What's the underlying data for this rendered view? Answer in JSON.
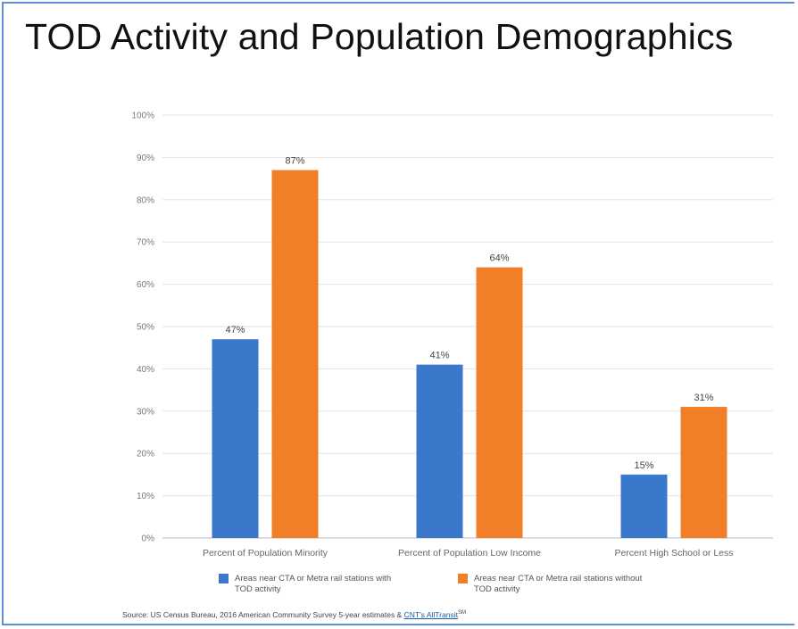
{
  "title": "TOD Activity and Population Demographics",
  "chart_data": {
    "type": "bar",
    "categories": [
      "Percent of Population Minority",
      "Percent of Population Low Income",
      "Percent High School or Less"
    ],
    "series": [
      {
        "name": "Areas near CTA or Metra rail stations with TOD activity",
        "color": "#3a78cc",
        "values": [
          47,
          41,
          15
        ],
        "labels": [
          "47%",
          "41%",
          "15%"
        ]
      },
      {
        "name": "Areas near CTA or Metra rail stations without TOD activity",
        "color": "#f07f28",
        "values": [
          87,
          64,
          31
        ],
        "labels": [
          "87%",
          "64%",
          "31%"
        ]
      }
    ],
    "yticks": [
      {
        "value": 0,
        "label": "0%"
      },
      {
        "value": 10,
        "label": "10%"
      },
      {
        "value": 20,
        "label": "20%"
      },
      {
        "value": 30,
        "label": "30%"
      },
      {
        "value": 40,
        "label": "40%"
      },
      {
        "value": 50,
        "label": "50%"
      },
      {
        "value": 60,
        "label": "60%"
      },
      {
        "value": 70,
        "label": "70%"
      },
      {
        "value": 80,
        "label": "80%"
      },
      {
        "value": 90,
        "label": "90%"
      },
      {
        "value": 100,
        "label": "100%"
      }
    ],
    "ylim": [
      0,
      100
    ],
    "grid": true,
    "legend": "bottom"
  },
  "source": {
    "prefix": "Source: US Census Bureau, 2016 American Community Survey 5-year estimates & ",
    "link": "CNT's AllTransit",
    "suffix": "SM"
  }
}
